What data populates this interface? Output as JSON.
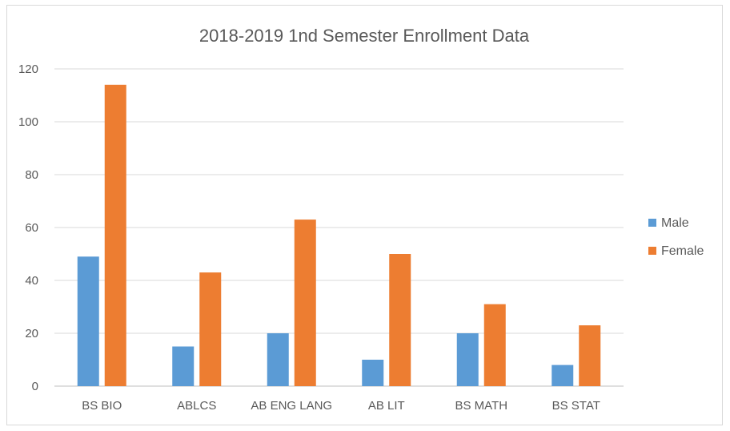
{
  "chart_data": {
    "type": "bar",
    "title": "2018-2019 1nd Semester Enrollment Data",
    "categories": [
      "BS BIO",
      "ABLCS",
      "AB ENG LANG",
      "AB LIT",
      "BS MATH",
      "BS STAT"
    ],
    "series": [
      {
        "name": "Male",
        "color": "#5b9bd5",
        "values": [
          49,
          15,
          20,
          10,
          20,
          8
        ]
      },
      {
        "name": "Female",
        "color": "#ed7d31",
        "values": [
          114,
          43,
          63,
          50,
          31,
          23
        ]
      }
    ],
    "ylim": [
      0,
      120
    ],
    "yticks": [
      0,
      20,
      40,
      60,
      80,
      100,
      120
    ],
    "grid": true,
    "legend_position": "right",
    "xlabel": "",
    "ylabel": ""
  }
}
